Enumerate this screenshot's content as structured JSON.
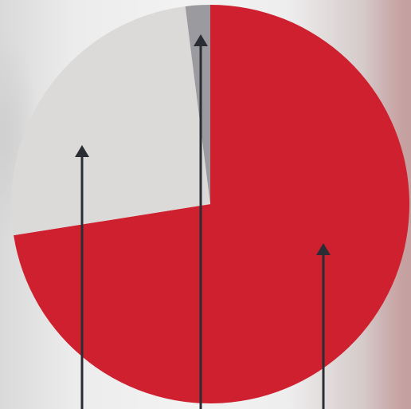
{
  "chart_data": {
    "type": "pie",
    "title": "",
    "start_angle_deg": 0,
    "direction": "clockwise",
    "slices": [
      {
        "value": 72.5,
        "color": "#cf2030"
      },
      {
        "value": 25.5,
        "color": "#dcdad8"
      },
      {
        "value": 2.0,
        "color": "#9a9a9f"
      }
    ],
    "pointer_arrows": true
  }
}
